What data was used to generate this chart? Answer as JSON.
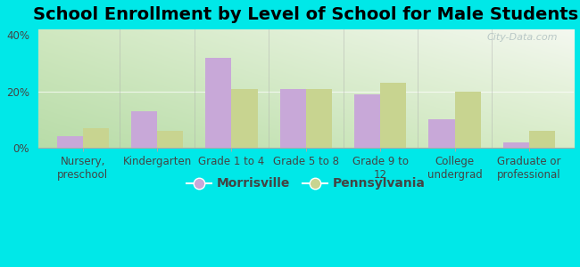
{
  "title": "School Enrollment by Level of School for Male Students",
  "categories": [
    "Nursery,\npreschool",
    "Kindergarten",
    "Grade 1 to 4",
    "Grade 5 to 8",
    "Grade 9 to\n12",
    "College\nundergrad",
    "Graduate or\nprofessional"
  ],
  "morrisville": [
    4,
    13,
    32,
    21,
    19,
    10,
    2
  ],
  "pennsylvania": [
    7,
    6,
    21,
    21,
    23,
    20,
    6
  ],
  "morrisville_color": "#c8a8d8",
  "pennsylvania_color": "#c8d490",
  "background_color": "#00e8e8",
  "plot_bg_topleft": "#d8ecd0",
  "plot_bg_topright": "#f0f8f0",
  "plot_bg_bottomleft": "#c8e8c0",
  "plot_bg_bottomright": "#ffffff",
  "ylim": [
    0,
    42
  ],
  "yticks": [
    0,
    20,
    40
  ],
  "ytick_labels": [
    "0%",
    "20%",
    "40%"
  ],
  "title_fontsize": 14,
  "tick_fontsize": 8.5,
  "legend_fontsize": 10,
  "bar_width": 0.35,
  "watermark": "City-Data.com"
}
